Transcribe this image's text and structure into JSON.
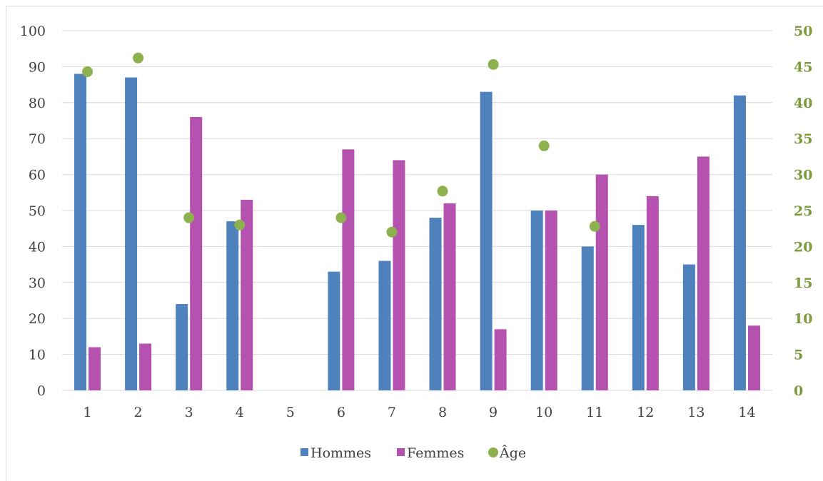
{
  "chart_data": {
    "type": "bar",
    "categories": [
      "1",
      "2",
      "3",
      "4",
      "5",
      "6",
      "7",
      "8",
      "9",
      "10",
      "11",
      "12",
      "13",
      "14"
    ],
    "series": [
      {
        "name": "Hommes",
        "type": "bar",
        "axis": "left",
        "color": "#4f81bd",
        "values": [
          88,
          87,
          24,
          47,
          null,
          33,
          36,
          48,
          83,
          50,
          40,
          46,
          35,
          82
        ]
      },
      {
        "name": "Femmes",
        "type": "bar",
        "axis": "left",
        "color": "#b552b0",
        "values": [
          12,
          13,
          76,
          53,
          null,
          67,
          64,
          52,
          17,
          50,
          60,
          54,
          65,
          18
        ]
      },
      {
        "name": "Âge",
        "type": "scatter",
        "axis": "right",
        "color": "#8db14f",
        "values": [
          44.3,
          46.2,
          24.0,
          23.0,
          null,
          24.0,
          22.0,
          27.7,
          45.3,
          34.0,
          22.8,
          null,
          null,
          null
        ]
      }
    ],
    "left_axis": {
      "min": 0,
      "max": 100,
      "step": 10,
      "tick_labels": [
        "0",
        "10",
        "20",
        "30",
        "40",
        "50",
        "60",
        "70",
        "80",
        "90",
        "100"
      ]
    },
    "right_axis": {
      "min": 0,
      "max": 50,
      "step": 5,
      "color": "#7a9a3c",
      "tick_labels": [
        "0",
        "5",
        "10",
        "15",
        "20",
        "25",
        "30",
        "35",
        "40",
        "45",
        "50"
      ]
    },
    "grid": true,
    "legend": {
      "position": "bottom",
      "items": [
        "Hommes",
        "Femmes",
        "Âge"
      ]
    }
  }
}
